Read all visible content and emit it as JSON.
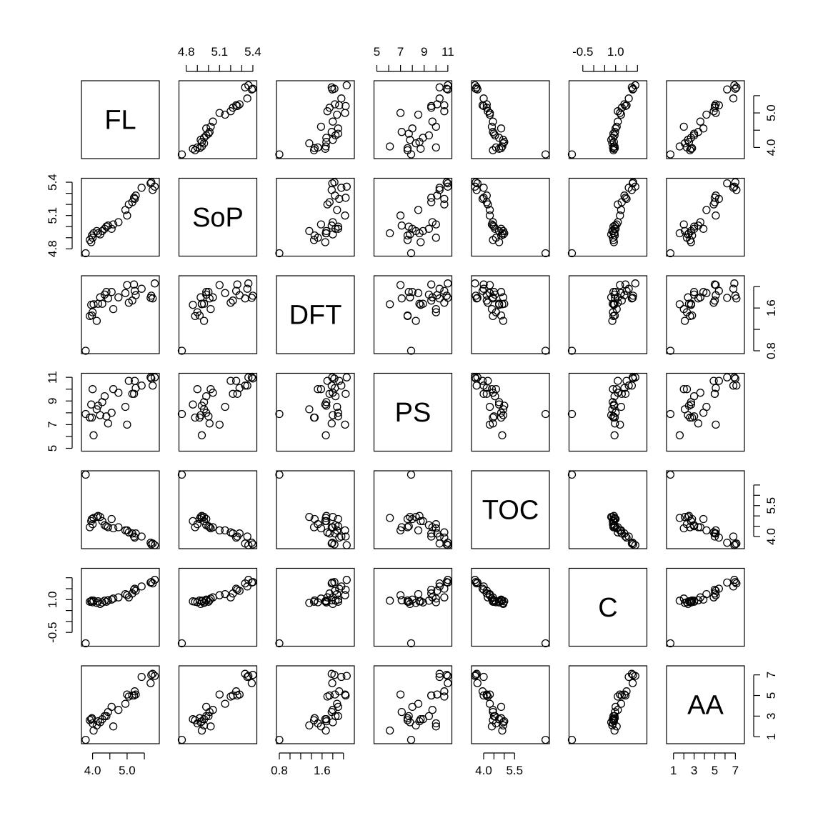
{
  "chart_data": {
    "type": "scatter",
    "title": "",
    "variables": [
      "FL",
      "SoP",
      "DFT",
      "PS",
      "TOC",
      "C",
      "AA"
    ],
    "ranges": {
      "FL": [
        3.76,
        5.85
      ],
      "SoP": [
        4.76,
        5.41
      ],
      "DFT": [
        0.8,
        2.15
      ],
      "PS": [
        5.0,
        11.1
      ],
      "TOC": [
        3.55,
        7.05
      ],
      "C": [
        -1.0,
        2.3
      ],
      "AA": [
        0.6,
        7.6
      ]
    },
    "axis_ticks": [
      {
        "variable": "SoP",
        "side": "top",
        "values": [
          4.8,
          5.1,
          5.4
        ],
        "labels": [
          "4.8",
          "5.1",
          "5.4"
        ],
        "minor_values": [
          4.9,
          5.0,
          5.2,
          5.3
        ]
      },
      {
        "variable": "PS",
        "side": "top",
        "values": [
          5,
          7,
          9,
          11
        ],
        "labels": [
          "5",
          "7",
          "9",
          "11"
        ],
        "minor_values": [
          6,
          8,
          10
        ]
      },
      {
        "variable": "C",
        "side": "top",
        "values": [
          -0.5,
          1.0
        ],
        "labels": [
          "-0.5",
          "1.0"
        ],
        "minor_values": [
          0.0,
          0.5,
          1.5,
          2.0
        ]
      },
      {
        "variable": "FL",
        "side": "right",
        "values": [
          4.0,
          5.0
        ],
        "labels": [
          "4.0",
          "5.0"
        ],
        "minor_values": [
          4.5,
          5.5
        ]
      },
      {
        "variable": "DFT",
        "side": "right",
        "values": [
          0.8,
          1.6
        ],
        "labels": [
          "0.8",
          "1.6"
        ],
        "minor_values": [
          1.2,
          2.0
        ]
      },
      {
        "variable": "TOC",
        "side": "right",
        "values": [
          4.0,
          5.5
        ],
        "labels": [
          "4.0",
          "5.5"
        ],
        "minor_values": [
          4.5,
          5.0,
          6.0,
          6.5
        ]
      },
      {
        "variable": "AA",
        "side": "right",
        "values": [
          1,
          3,
          5,
          7
        ],
        "labels": [
          "1",
          "3",
          "5",
          "7"
        ],
        "minor_values": []
      },
      {
        "variable": "SoP",
        "side": "left",
        "values": [
          4.8,
          5.1,
          5.4
        ],
        "labels": [
          "4.8",
          "5.1",
          "5.4"
        ],
        "minor_values": [
          4.9,
          5.0,
          5.2,
          5.3
        ]
      },
      {
        "variable": "PS",
        "side": "left",
        "values": [
          5,
          7,
          9,
          11
        ],
        "labels": [
          "5",
          "7",
          "9",
          "11"
        ],
        "minor_values": [
          6,
          8,
          10
        ]
      },
      {
        "variable": "C",
        "side": "left",
        "values": [
          -0.5,
          1.0
        ],
        "labels": [
          "-0.5",
          "1.0"
        ],
        "minor_values": [
          0.0,
          0.5,
          1.5,
          2.0
        ]
      },
      {
        "variable": "FL",
        "side": "bottom",
        "values": [
          4.0,
          5.0
        ],
        "labels": [
          "4.0",
          "5.0"
        ],
        "minor_values": [
          4.5,
          5.5
        ]
      },
      {
        "variable": "DFT",
        "side": "bottom",
        "values": [
          0.8,
          1.6
        ],
        "labels": [
          "0.8",
          "1.6"
        ],
        "minor_values": [
          1.0,
          1.2,
          1.4,
          1.8,
          2.0
        ]
      },
      {
        "variable": "TOC",
        "side": "bottom",
        "values": [
          4.0,
          5.5
        ],
        "labels": [
          "4.0",
          "5.5"
        ],
        "minor_values": [
          4.5,
          5.0
        ]
      },
      {
        "variable": "AA",
        "side": "bottom",
        "values": [
          1,
          3,
          5,
          7
        ],
        "labels": [
          "1",
          "3",
          "5",
          "7"
        ],
        "minor_values": [
          2,
          4,
          6
        ]
      }
    ],
    "observations": [
      {
        "FL": 3.8,
        "SoP": 4.76,
        "DFT": 0.8,
        "PS": 7.9,
        "TOC": 7.0,
        "C": -1.0,
        "AA": 0.7
      },
      {
        "FL": 3.92,
        "SoP": 4.88,
        "DFT": 1.45,
        "PS": 7.6,
        "TOC": 4.45,
        "C": 0.9,
        "AA": 2.6
      },
      {
        "FL": 3.96,
        "SoP": 4.86,
        "DFT": 1.66,
        "PS": 8.7,
        "TOC": 4.75,
        "C": 0.92,
        "AA": 2.7
      },
      {
        "FL": 3.98,
        "SoP": 4.92,
        "DFT": 1.46,
        "PS": 7.6,
        "TOC": 4.85,
        "C": 0.96,
        "AA": 2.8
      },
      {
        "FL": 4.0,
        "SoP": 4.9,
        "DFT": 1.52,
        "PS": 10.0,
        "TOC": 4.6,
        "C": 0.88,
        "AA": 2.3
      },
      {
        "FL": 4.03,
        "SoP": 4.94,
        "DFT": 1.67,
        "PS": 6.1,
        "TOC": 4.9,
        "C": 0.95,
        "AA": 1.6
      },
      {
        "FL": 4.12,
        "SoP": 4.96,
        "DFT": 1.36,
        "PS": 8.3,
        "TOC": 4.95,
        "C": 0.85,
        "AA": 2.1
      },
      {
        "FL": 4.16,
        "SoP": 4.94,
        "DFT": 1.68,
        "PS": 8.6,
        "TOC": 5.0,
        "C": 0.92,
        "AA": 2.5
      },
      {
        "FL": 4.22,
        "SoP": 4.93,
        "DFT": 1.8,
        "PS": 7.8,
        "TOC": 4.95,
        "C": 0.8,
        "AA": 2.4
      },
      {
        "FL": 4.28,
        "SoP": 4.96,
        "DFT": 1.68,
        "PS": 8.9,
        "TOC": 4.75,
        "C": 0.87,
        "AA": 2.7
      },
      {
        "FL": 4.35,
        "SoP": 4.98,
        "DFT": 1.85,
        "PS": 9.4,
        "TOC": 4.55,
        "C": 0.95,
        "AA": 3.0
      },
      {
        "FL": 4.4,
        "SoP": 5.0,
        "DFT": 1.9,
        "PS": 7.7,
        "TOC": 4.5,
        "C": 0.9,
        "AA": 3.0
      },
      {
        "FL": 4.45,
        "SoP": 5.01,
        "DFT": 1.78,
        "PS": 7.1,
        "TOC": 4.45,
        "C": 0.97,
        "AA": 3.4
      },
      {
        "FL": 4.55,
        "SoP": 4.98,
        "DFT": 1.9,
        "PS": 8.0,
        "TOC": 4.85,
        "C": 1.0,
        "AA": 3.9
      },
      {
        "FL": 4.6,
        "SoP": 5.02,
        "DFT": 1.58,
        "PS": 10.0,
        "TOC": 4.4,
        "C": 1.05,
        "AA": 2.0
      },
      {
        "FL": 4.75,
        "SoP": 5.04,
        "DFT": 1.8,
        "PS": 9.7,
        "TOC": 4.45,
        "C": 1.1,
        "AA": 3.6
      },
      {
        "FL": 4.95,
        "SoP": 5.15,
        "DFT": 1.88,
        "PS": 8.5,
        "TOC": 4.3,
        "C": 1.25,
        "AA": 4.2
      },
      {
        "FL": 5.0,
        "SoP": 5.1,
        "DFT": 2.03,
        "PS": 7.0,
        "TOC": 4.3,
        "C": 1.2,
        "AA": 5.1
      },
      {
        "FL": 5.05,
        "SoP": 5.2,
        "DFT": 1.7,
        "PS": 10.7,
        "TOC": 4.2,
        "C": 1.1,
        "AA": 4.9
      },
      {
        "FL": 5.15,
        "SoP": 5.22,
        "DFT": 1.74,
        "PS": 9.6,
        "TOC": 4.15,
        "C": 1.28,
        "AA": 5.0
      },
      {
        "FL": 5.2,
        "SoP": 5.26,
        "DFT": 2.04,
        "PS": 9.6,
        "TOC": 4.0,
        "C": 1.45,
        "AA": 5.0
      },
      {
        "FL": 5.22,
        "SoP": 5.25,
        "DFT": 1.92,
        "PS": 10.7,
        "TOC": 3.95,
        "C": 1.5,
        "AA": 5.4
      },
      {
        "FL": 5.25,
        "SoP": 5.28,
        "DFT": 1.84,
        "PS": 10.1,
        "TOC": 4.15,
        "C": 1.4,
        "AA": 5.1
      },
      {
        "FL": 5.42,
        "SoP": 5.35,
        "DFT": 1.96,
        "PS": 10.3,
        "TOC": 4.0,
        "C": 1.6,
        "AA": 6.8
      },
      {
        "FL": 5.68,
        "SoP": 5.39,
        "DFT": 1.79,
        "PS": 11.0,
        "TOC": 3.7,
        "C": 1.78,
        "AA": 6.2
      },
      {
        "FL": 5.7,
        "SoP": 5.4,
        "DFT": 1.83,
        "PS": 10.9,
        "TOC": 3.62,
        "C": 1.8,
        "AA": 7.0
      },
      {
        "FL": 5.74,
        "SoP": 5.33,
        "DFT": 1.78,
        "PS": 10.3,
        "TOC": 3.66,
        "C": 1.74,
        "AA": 7.1
      },
      {
        "FL": 5.8,
        "SoP": 5.36,
        "DFT": 2.06,
        "PS": 11.0,
        "TOC": 3.58,
        "C": 1.9,
        "AA": 6.9
      }
    ]
  }
}
